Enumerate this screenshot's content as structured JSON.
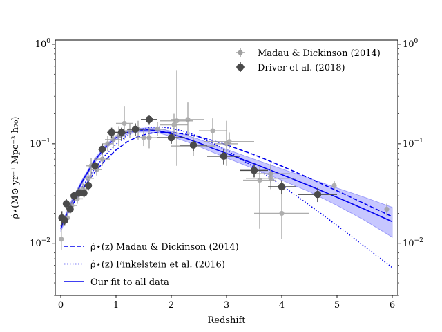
{
  "chart_data": {
    "type": "scatter",
    "xlabel": "Redshift",
    "ylabel": "ρ̇⋆(M⊙ yr⁻¹ Mpc⁻³ h₇₀)",
    "xlim": [
      -0.1,
      6.1
    ],
    "ylim": [
      0.003,
      1.1
    ],
    "yscale": "log",
    "grid": false,
    "legend_top_position": "top-right",
    "legend_bottom_position": "bottom-left",
    "x_ticks": [
      {
        "value": 0,
        "label": "0"
      },
      {
        "value": 1,
        "label": "1"
      },
      {
        "value": 2,
        "label": "2"
      },
      {
        "value": 3,
        "label": "3"
      },
      {
        "value": 4,
        "label": "4"
      },
      {
        "value": 5,
        "label": "5"
      },
      {
        "value": 6,
        "label": "6"
      }
    ],
    "y_ticks": [
      {
        "value": 0.01,
        "base": "10",
        "exp": "−2"
      },
      {
        "value": 0.1,
        "base": "10",
        "exp": "−1"
      },
      {
        "value": 1,
        "base": "10",
        "exp": "0"
      }
    ],
    "colors": {
      "madau_points": "#a0a0a0",
      "driver_points": "#4a4a4a",
      "curves": "#0000ee",
      "band": "#9999ff"
    },
    "legend_top": [
      {
        "label": "Madau & Dickinson (2014)",
        "marker": "small-circle",
        "color": "#a0a0a0"
      },
      {
        "label": "Driver et al. (2018)",
        "marker": "large-circle",
        "color": "#4a4a4a"
      }
    ],
    "legend_bottom": [
      {
        "math": "ρ̇⋆(z)",
        "label": "Madau & Dickinson (2014)",
        "style": "dashed"
      },
      {
        "math": "ρ̇⋆(z)",
        "label": "Finkelstein et al. (2016)",
        "style": "dotted"
      },
      {
        "math": "",
        "label": "Our fit to all data",
        "style": "solid"
      }
    ],
    "series": [
      {
        "name": "Madau & Dickinson (2014)",
        "kind": "scatter",
        "points": [
          {
            "x": 0.01,
            "y": 0.011,
            "xerr": 0.0,
            "ylo": 0.0085,
            "yhi": 0.014
          },
          {
            "x": 0.05,
            "y": 0.017,
            "xerr": 0.05,
            "ylo": 0.015,
            "yhi": 0.019
          },
          {
            "x": 0.12,
            "y": 0.018,
            "xerr": 0.05,
            "ylo": 0.016,
            "yhi": 0.021
          },
          {
            "x": 0.2,
            "y": 0.024,
            "xerr": 0.1,
            "ylo": 0.021,
            "yhi": 0.027
          },
          {
            "x": 0.3,
            "y": 0.028,
            "xerr": 0.1,
            "ylo": 0.025,
            "yhi": 0.032
          },
          {
            "x": 0.4,
            "y": 0.035,
            "xerr": 0.1,
            "ylo": 0.03,
            "yhi": 0.04
          },
          {
            "x": 0.5,
            "y": 0.045,
            "xerr": 0.1,
            "ylo": 0.038,
            "yhi": 0.052
          },
          {
            "x": 0.55,
            "y": 0.06,
            "xerr": 0.1,
            "ylo": 0.045,
            "yhi": 0.072
          },
          {
            "x": 0.65,
            "y": 0.055,
            "xerr": 0.1,
            "ylo": 0.048,
            "yhi": 0.063
          },
          {
            "x": 0.75,
            "y": 0.07,
            "xerr": 0.15,
            "ylo": 0.06,
            "yhi": 0.085
          },
          {
            "x": 0.85,
            "y": 0.1,
            "xerr": 0.1,
            "ylo": 0.085,
            "yhi": 0.12
          },
          {
            "x": 0.95,
            "y": 0.11,
            "xerr": 0.15,
            "ylo": 0.09,
            "yhi": 0.13
          },
          {
            "x": 1.05,
            "y": 0.12,
            "xerr": 0.1,
            "ylo": 0.095,
            "yhi": 0.15
          },
          {
            "x": 1.15,
            "y": 0.16,
            "xerr": 0.15,
            "ylo": 0.11,
            "yhi": 0.24
          },
          {
            "x": 1.25,
            "y": 0.135,
            "xerr": 0.1,
            "ylo": 0.115,
            "yhi": 0.16
          },
          {
            "x": 1.4,
            "y": 0.14,
            "xerr": 0.15,
            "ylo": 0.11,
            "yhi": 0.17
          },
          {
            "x": 1.5,
            "y": 0.115,
            "xerr": 0.15,
            "ylo": 0.095,
            "yhi": 0.14
          },
          {
            "x": 1.6,
            "y": 0.115,
            "xerr": 0.2,
            "ylo": 0.09,
            "yhi": 0.145
          },
          {
            "x": 1.75,
            "y": 0.14,
            "xerr": 0.15,
            "ylo": 0.12,
            "yhi": 0.165
          },
          {
            "x": 2.05,
            "y": 0.155,
            "xerr": 0.25,
            "ylo": 0.12,
            "yhi": 0.2
          },
          {
            "x": 2.1,
            "y": 0.17,
            "xerr": 0.3,
            "ylo": 0.06,
            "yhi": 0.55
          },
          {
            "x": 2.3,
            "y": 0.175,
            "xerr": 0.3,
            "ylo": 0.12,
            "yhi": 0.26
          },
          {
            "x": 2.4,
            "y": 0.095,
            "xerr": 0.4,
            "ylo": 0.075,
            "yhi": 0.12
          },
          {
            "x": 2.75,
            "y": 0.135,
            "xerr": 0.25,
            "ylo": 0.1,
            "yhi": 0.18
          },
          {
            "x": 3.0,
            "y": 0.1,
            "xerr": 0.2,
            "ylo": 0.06,
            "yhi": 0.17
          },
          {
            "x": 3.05,
            "y": 0.105,
            "xerr": 0.45,
            "ylo": 0.09,
            "yhi": 0.13
          },
          {
            "x": 3.8,
            "y": 0.045,
            "xerr": 0.45,
            "ylo": 0.035,
            "yhi": 0.058
          },
          {
            "x": 3.8,
            "y": 0.05,
            "xerr": 0.35,
            "ylo": 0.04,
            "yhi": 0.063
          },
          {
            "x": 4.0,
            "y": 0.02,
            "xerr": 0.5,
            "ylo": 0.011,
            "yhi": 0.036
          },
          {
            "x": 3.6,
            "y": 0.043,
            "xerr": 0.3,
            "ylo": 0.014,
            "yhi": 0.06
          },
          {
            "x": 4.95,
            "y": 0.038,
            "xerr": 0.0,
            "ylo": 0.034,
            "yhi": 0.042
          },
          {
            "x": 5.9,
            "y": 0.022,
            "xerr": 0.0,
            "ylo": 0.019,
            "yhi": 0.025
          }
        ]
      },
      {
        "name": "Driver et al. (2018)",
        "kind": "scatter",
        "points": [
          {
            "x": 0.02,
            "y": 0.018,
            "xerr": 0.02,
            "ylo": 0.015,
            "yhi": 0.021
          },
          {
            "x": 0.07,
            "y": 0.017,
            "xerr": 0.03,
            "ylo": 0.015,
            "yhi": 0.019
          },
          {
            "x": 0.1,
            "y": 0.025,
            "xerr": 0.05,
            "ylo": 0.022,
            "yhi": 0.028
          },
          {
            "x": 0.17,
            "y": 0.022,
            "xerr": 0.05,
            "ylo": 0.02,
            "yhi": 0.025
          },
          {
            "x": 0.24,
            "y": 0.03,
            "xerr": 0.05,
            "ylo": 0.027,
            "yhi": 0.033
          },
          {
            "x": 0.33,
            "y": 0.032,
            "xerr": 0.05,
            "ylo": 0.029,
            "yhi": 0.036
          },
          {
            "x": 0.42,
            "y": 0.032,
            "xerr": 0.05,
            "ylo": 0.029,
            "yhi": 0.035
          },
          {
            "x": 0.5,
            "y": 0.038,
            "xerr": 0.05,
            "ylo": 0.034,
            "yhi": 0.042
          },
          {
            "x": 0.62,
            "y": 0.06,
            "xerr": 0.06,
            "ylo": 0.054,
            "yhi": 0.066
          },
          {
            "x": 0.75,
            "y": 0.088,
            "xerr": 0.07,
            "ylo": 0.078,
            "yhi": 0.1
          },
          {
            "x": 0.92,
            "y": 0.13,
            "xerr": 0.08,
            "ylo": 0.115,
            "yhi": 0.145
          },
          {
            "x": 1.1,
            "y": 0.13,
            "xerr": 0.1,
            "ylo": 0.11,
            "yhi": 0.145
          },
          {
            "x": 1.35,
            "y": 0.14,
            "xerr": 0.15,
            "ylo": 0.12,
            "yhi": 0.16
          },
          {
            "x": 1.6,
            "y": 0.175,
            "xerr": 0.15,
            "ylo": 0.155,
            "yhi": 0.195
          },
          {
            "x": 2.0,
            "y": 0.115,
            "xerr": 0.25,
            "ylo": 0.1,
            "yhi": 0.13
          },
          {
            "x": 2.4,
            "y": 0.097,
            "xerr": 0.25,
            "ylo": 0.085,
            "yhi": 0.11
          },
          {
            "x": 2.95,
            "y": 0.075,
            "xerr": 0.3,
            "ylo": 0.062,
            "yhi": 0.088
          },
          {
            "x": 3.5,
            "y": 0.054,
            "xerr": 0.25,
            "ylo": 0.046,
            "yhi": 0.062
          },
          {
            "x": 4.0,
            "y": 0.037,
            "xerr": 0.25,
            "ylo": 0.031,
            "yhi": 0.043
          },
          {
            "x": 4.65,
            "y": 0.031,
            "xerr": 0.35,
            "ylo": 0.026,
            "yhi": 0.036
          }
        ]
      },
      {
        "name": "ρ̇⋆(z) Madau & Dickinson (2014)",
        "kind": "line",
        "style": "dashed",
        "x": [
          0.0,
          0.2,
          0.4,
          0.6,
          0.8,
          1.0,
          1.2,
          1.4,
          1.6,
          1.8,
          2.0,
          2.25,
          2.5,
          2.75,
          3.0,
          3.5,
          4.0,
          4.5,
          5.0,
          5.5,
          6.0
        ],
        "y": [
          0.015,
          0.0238,
          0.0355,
          0.0504,
          0.0679,
          0.0866,
          0.1043,
          0.1183,
          0.1271,
          0.1306,
          0.1298,
          0.1251,
          0.1174,
          0.1078,
          0.0977,
          0.0776,
          0.0597,
          0.0451,
          0.0337,
          0.025,
          0.0185
        ]
      },
      {
        "name": "ρ̇⋆(z) Finkelstein et al. (2016)",
        "kind": "line",
        "style": "dotted",
        "x": [
          0.0,
          0.2,
          0.4,
          0.6,
          0.8,
          1.0,
          1.2,
          1.4,
          1.6,
          1.8,
          2.0,
          2.25,
          2.5,
          2.75,
          3.0,
          3.5,
          4.0,
          4.5,
          5.0,
          5.5,
          6.0
        ],
        "y": [
          0.015,
          0.0245,
          0.0377,
          0.0551,
          0.0761,
          0.0989,
          0.1202,
          0.1365,
          0.1458,
          0.1478,
          0.1434,
          0.1324,
          0.1176,
          0.1015,
          0.0858,
          0.0583,
          0.0381,
          0.0242,
          0.0151,
          0.0093,
          0.0057
        ]
      },
      {
        "name": "Our fit to all data",
        "kind": "line",
        "style": "solid",
        "x": [
          0.0,
          0.2,
          0.4,
          0.6,
          0.8,
          1.0,
          1.2,
          1.4,
          1.6,
          1.8,
          2.0,
          2.25,
          2.5,
          2.75,
          3.0,
          3.5,
          4.0,
          4.5,
          5.0,
          5.5,
          6.0
        ],
        "y": [
          0.014,
          0.026,
          0.043,
          0.066,
          0.092,
          0.115,
          0.13,
          0.137,
          0.138,
          0.134,
          0.126,
          0.114,
          0.102,
          0.09,
          0.08,
          0.063,
          0.049,
          0.038,
          0.029,
          0.022,
          0.0165
        ],
        "band_upper": [
          0.015,
          0.0275,
          0.045,
          0.069,
          0.096,
          0.12,
          0.136,
          0.143,
          0.145,
          0.141,
          0.134,
          0.123,
          0.111,
          0.099,
          0.088,
          0.07,
          0.056,
          0.045,
          0.036,
          0.029,
          0.023
        ],
        "band_lower": [
          0.013,
          0.0245,
          0.041,
          0.063,
          0.088,
          0.11,
          0.124,
          0.131,
          0.131,
          0.127,
          0.118,
          0.106,
          0.094,
          0.082,
          0.072,
          0.056,
          0.043,
          0.033,
          0.024,
          0.017,
          0.0115
        ]
      }
    ]
  }
}
